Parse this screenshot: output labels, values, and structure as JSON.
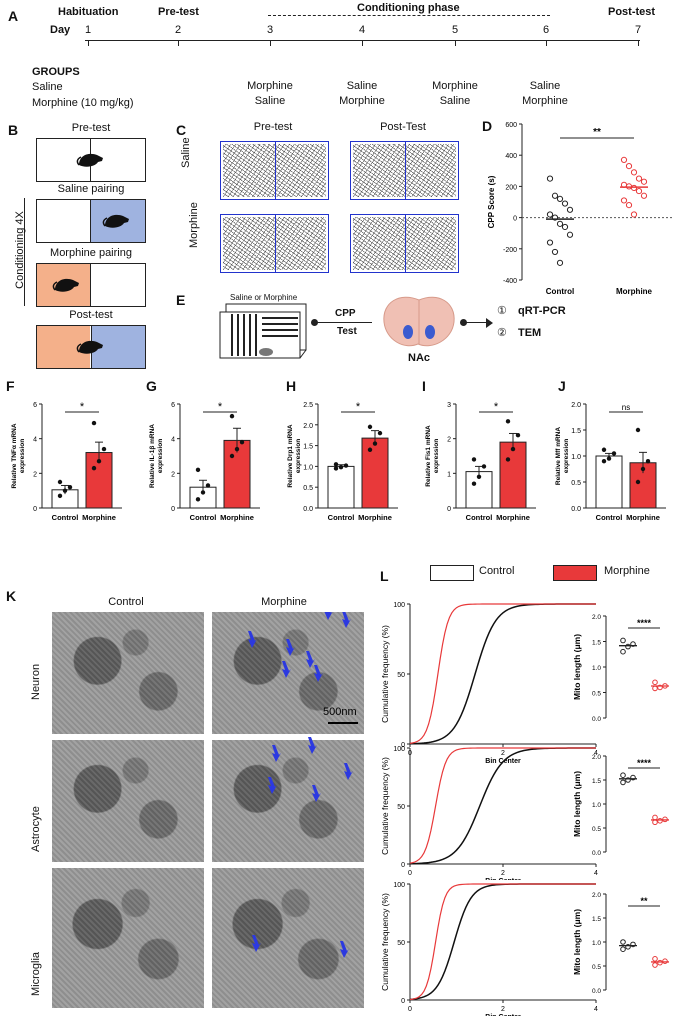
{
  "panel_labels": {
    "A": "A",
    "B": "B",
    "C": "C",
    "D": "D",
    "E": "E",
    "F": "F",
    "G": "G",
    "H": "H",
    "I": "I",
    "J": "J",
    "K": "K",
    "L": "L"
  },
  "timeline": {
    "phases": {
      "habituation": "Habituation",
      "pretest": "Pre-test",
      "conditioning": "Conditioning phase",
      "posttest": "Post-test"
    },
    "day_label": "Day",
    "days": [
      "1",
      "2",
      "3",
      "4",
      "5",
      "6",
      "7"
    ],
    "groups_label": "GROUPS",
    "group_saline": "Saline",
    "group_morphine": "Morphine (10 mg/kg)",
    "day3": [
      "Morphine",
      "Saline"
    ],
    "day4": [
      "Saline",
      "Morphine"
    ],
    "day5": [
      "Morphine",
      "Saline"
    ],
    "day6": [
      "Saline",
      "Morphine"
    ]
  },
  "panelB": {
    "pretest": "Pre-test",
    "saline_pairing": "Saline pairing",
    "morphine_pairing": "Morphine pairing",
    "posttest": "Post-test",
    "side_label": "Conditioning 4X",
    "colors": {
      "orange": "#f4b08a",
      "blue": "#9fb3e0"
    }
  },
  "panelC": {
    "col1": "Pre-test",
    "col2": "Post-Test",
    "row1": "Saline",
    "row2": "Morphine"
  },
  "panelD": {
    "chart_data": {
      "type": "scatter",
      "ylabel": "CPP Score (s)",
      "ylim": [
        -400,
        600
      ],
      "yticks": [
        "600",
        "400",
        "200",
        "0",
        "-200",
        "-400"
      ],
      "categories": [
        "Control",
        "Morphine"
      ],
      "series": [
        {
          "name": "Control",
          "mean": -10,
          "values": [
            250,
            140,
            120,
            90,
            50,
            20,
            0,
            -40,
            -60,
            -110,
            -160,
            -220,
            -290
          ]
        },
        {
          "name": "Morphine",
          "mean": 195,
          "values": [
            370,
            330,
            290,
            250,
            230,
            210,
            200,
            190,
            170,
            140,
            110,
            80,
            20
          ]
        }
      ],
      "significance": "**"
    }
  },
  "panelE": {
    "box_label": "Saline or Morphine",
    "arrow_label1": "CPP",
    "arrow_label2": "Test",
    "region": "NAc",
    "out1_num": "①",
    "out1": "qRT-PCR",
    "out2_num": "②",
    "out2": "TEM"
  },
  "bar_charts": [
    {
      "id": "F",
      "ylabel": "Relative TNFα mRNA expression",
      "ylim": [
        0,
        6
      ],
      "yticks": [
        "6",
        "4",
        "2",
        "0"
      ],
      "categories": [
        "Control",
        "Morphine"
      ],
      "values": [
        1.05,
        3.2
      ],
      "errors": [
        0.25,
        0.6
      ],
      "points": [
        [
          0.7,
          1.0,
          1.2,
          1.5
        ],
        [
          2.3,
          2.7,
          3.4,
          4.9
        ]
      ],
      "sig": "*"
    },
    {
      "id": "G",
      "ylabel": "Relative IL-1β mRNA expression",
      "ylim": [
        0,
        6
      ],
      "yticks": [
        "6",
        "4",
        "2",
        "0"
      ],
      "categories": [
        "Control",
        "Morphine"
      ],
      "values": [
        1.2,
        3.9
      ],
      "errors": [
        0.4,
        0.7
      ],
      "points": [
        [
          0.5,
          0.9,
          1.3,
          2.2
        ],
        [
          3.0,
          3.4,
          3.8,
          5.3
        ]
      ],
      "sig": "*"
    },
    {
      "id": "H",
      "ylabel": "Relative Drp1 mRNA expression",
      "ylim": [
        0,
        2.5
      ],
      "yticks": [
        "2.5",
        "2.0",
        "1.5",
        "1.0",
        "0.5",
        "0.0"
      ],
      "categories": [
        "Control",
        "Morphine"
      ],
      "values": [
        1.0,
        1.68
      ],
      "errors": [
        0.04,
        0.18
      ],
      "points": [
        [
          0.95,
          0.98,
          1.02,
          1.05
        ],
        [
          1.4,
          1.55,
          1.8,
          1.95
        ]
      ],
      "sig": "*"
    },
    {
      "id": "I",
      "ylabel": "Relative Fis1 mRNA expression",
      "ylim": [
        0,
        3
      ],
      "yticks": [
        "3",
        "2",
        "1",
        "0"
      ],
      "categories": [
        "Control",
        "Morphine"
      ],
      "values": [
        1.05,
        1.9
      ],
      "errors": [
        0.15,
        0.25
      ],
      "points": [
        [
          0.7,
          0.9,
          1.2,
          1.4
        ],
        [
          1.4,
          1.7,
          2.1,
          2.5
        ]
      ],
      "sig": "*"
    },
    {
      "id": "J",
      "ylabel": "Relative Mff mRNA expression",
      "ylim": [
        0,
        2.0
      ],
      "yticks": [
        "2.0",
        "1.5",
        "1.0",
        "0.5",
        "0.0"
      ],
      "categories": [
        "Control",
        "Morphine"
      ],
      "values": [
        1.0,
        0.87
      ],
      "errors": [
        0.05,
        0.2
      ],
      "points": [
        [
          0.9,
          0.95,
          1.05,
          1.12
        ],
        [
          0.5,
          0.75,
          0.9,
          1.5
        ]
      ],
      "sig": "ns"
    }
  ],
  "legend": {
    "control": "Control",
    "morphine": "Morphine",
    "morphine_color": "#e8393a"
  },
  "panelK": {
    "col1": "Control",
    "col2": "Morphine",
    "rows": [
      "Neuron",
      "Astrocyte",
      "Microglia"
    ],
    "scale": "500nm"
  },
  "panelL": [
    {
      "chart_data": {
        "type": "line",
        "ylabel": "Cumulative frequency (%)",
        "xlabel": "Bin Center",
        "ylim": [
          0,
          100
        ],
        "xlim": [
          0,
          4
        ],
        "yticks": [
          "100",
          "50",
          "0"
        ],
        "xticks": [
          "0",
          "2",
          "4"
        ]
      },
      "inset": {
        "ylabel": "Mito length (μm)",
        "ylim": [
          0,
          2.0
        ],
        "yticks": [
          "2.0",
          "1.5",
          "1.0",
          "0.5",
          "0.0"
        ],
        "control": [
          1.3,
          1.4,
          1.45,
          1.52
        ],
        "morphine": [
          0.58,
          0.6,
          0.63,
          0.7
        ],
        "sig": "****"
      }
    },
    {
      "chart_data": {
        "type": "line",
        "ylabel": "Cumulative frequency (%)",
        "xlabel": "Bin Center",
        "ylim": [
          0,
          100
        ],
        "xlim": [
          0,
          4
        ],
        "yticks": [
          "100",
          "50",
          "0"
        ],
        "xticks": [
          "0",
          "2",
          "4"
        ]
      },
      "inset": {
        "ylabel": "Mito length (μm)",
        "ylim": [
          0,
          2.0
        ],
        "yticks": [
          "2.0",
          "1.5",
          "1.0",
          "0.5",
          "0.0"
        ],
        "control": [
          1.45,
          1.5,
          1.55,
          1.6
        ],
        "morphine": [
          0.62,
          0.65,
          0.68,
          0.72
        ],
        "sig": "****"
      }
    },
    {
      "chart_data": {
        "type": "line",
        "ylabel": "Cumulative frequency (%)",
        "xlabel": "Bin Center",
        "ylim": [
          0,
          100
        ],
        "xlim": [
          0,
          4
        ],
        "yticks": [
          "100",
          "50",
          "0"
        ],
        "xticks": [
          "0",
          "2",
          "4"
        ]
      },
      "inset": {
        "ylabel": "Mito length (μm)",
        "ylim": [
          0,
          2.0
        ],
        "yticks": [
          "2.0",
          "1.5",
          "1.0",
          "0.5",
          "0.0"
        ],
        "control": [
          0.85,
          0.9,
          0.95,
          1.0
        ],
        "morphine": [
          0.52,
          0.57,
          0.6,
          0.65
        ],
        "sig": "**"
      }
    }
  ]
}
